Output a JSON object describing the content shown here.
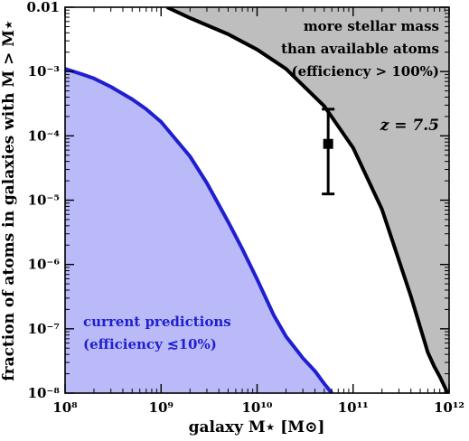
{
  "chart_data": {
    "type": "area",
    "title": "",
    "xlabel": "galaxy M⋆ [M⊙]",
    "ylabel": "fraction of atoms in galaxies with M > M⋆",
    "xscale": "log",
    "yscale": "log",
    "xlim": [
      100000000.0,
      1000000000000.0
    ],
    "ylim": [
      1e-08,
      0.01
    ],
    "grid": false,
    "x_tick_labels": [
      "10⁸",
      "10⁹",
      "10¹⁰",
      "10¹¹",
      "10¹²"
    ],
    "y_tick_labels": [
      "10⁻⁸",
      "10⁻⁷",
      "10⁻⁶",
      "10⁻⁵",
      "10⁻⁴",
      "10⁻³",
      "0.01"
    ],
    "series": [
      {
        "name": "100% efficiency limit",
        "color": "#000000",
        "fill": "#bebebe",
        "fill_side": "above",
        "x": [
          1150000000.0,
          2000000000.0,
          5000000000.0,
          10000000000.0,
          20000000000.0,
          50000000000.0,
          100000000000.0,
          200000000000.0,
          400000000000.0,
          600000000000.0,
          700000000000.0,
          800000000000.0,
          900000000000.0,
          960000000000.0
        ],
        "y": [
          0.01,
          0.0068,
          0.0038,
          0.0022,
          0.0011,
          0.00029,
          6.5e-05,
          7.2e-06,
          3.2e-07,
          4.3e-08,
          2.6e-08,
          1.8e-08,
          1.25e-08,
          1e-08
        ]
      },
      {
        "name": "current predictions",
        "color": "#1f1fd0",
        "fill": "#babaf8",
        "fill_side": "below",
        "x": [
          100000000.0,
          150000000.0,
          200000000.0,
          300000000.0,
          500000000.0,
          700000000.0,
          1000000000.0,
          2000000000.0,
          3000000000.0,
          5000000000.0,
          7000000000.0,
          10000000000.0,
          15000000000.0,
          20000000000.0,
          30000000000.0,
          40000000000.0,
          50000000000.0,
          60000000000.0
        ],
        "y": [
          0.0011,
          0.00091,
          0.00078,
          0.00058,
          0.00037,
          0.00026,
          0.000165,
          4.8e-05,
          1.85e-05,
          4.6e-06,
          1.76e-06,
          5.9e-07,
          1.6e-07,
          7.6e-08,
          3.5e-08,
          2.2e-08,
          1.4e-08,
          1e-08
        ]
      }
    ],
    "points": [
      {
        "x": 55000000000.0,
        "y": 7.5e-05,
        "y_low": 1.25e-05,
        "y_high": 0.00026,
        "marker": "square",
        "color": "#000000"
      }
    ],
    "annotations": {
      "upper_lines": [
        "more stellar mass",
        "than available atoms",
        "(efficiency > 100%)"
      ],
      "redshift": "z = 7.5",
      "lower_lines": [
        "current predictions",
        "(efficiency ≲10%)"
      ]
    }
  }
}
